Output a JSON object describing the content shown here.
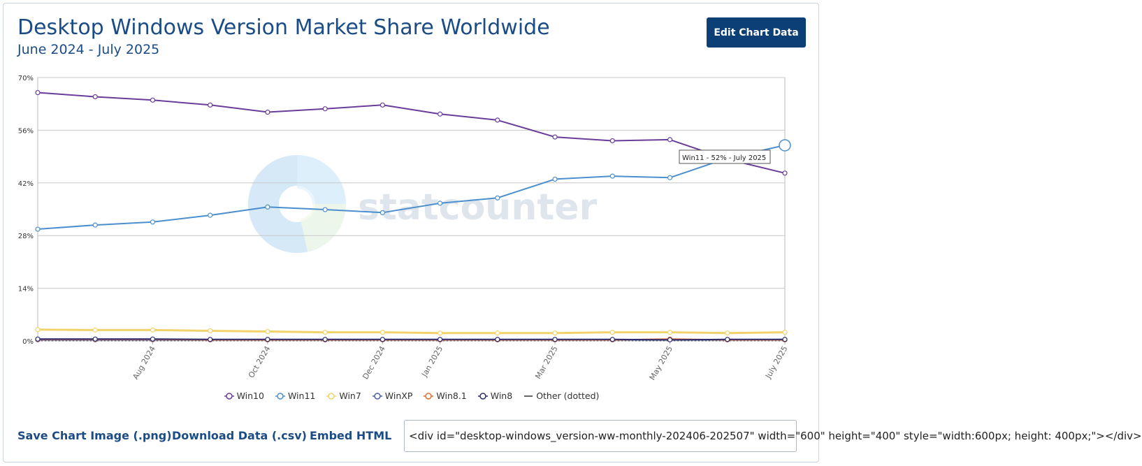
{
  "header": {
    "title": "Desktop Windows Version Market Share Worldwide",
    "subtitle": "June 2024 - July 2025",
    "edit_button": "Edit Chart Data"
  },
  "watermark": "statcounter",
  "tooltip": {
    "text": "Win11 - 52% - July 2025"
  },
  "chart_data": {
    "type": "line",
    "x": [
      "2024-06",
      "2024-07",
      "2024-08",
      "2024-09",
      "2024-10",
      "2024-11",
      "2024-12",
      "2025-01",
      "2025-02",
      "2025-03",
      "2025-04",
      "2025-05",
      "2025-06",
      "2025-07"
    ],
    "x_tick_labels": [
      "",
      "",
      "Aug 2024",
      "",
      "Oct 2024",
      "",
      "Dec 2024",
      "Jan 2025",
      "",
      "Mar 2025",
      "",
      "May 2025",
      "",
      "July 2025"
    ],
    "y_tick_labels": [
      "0%",
      "14%",
      "28%",
      "42%",
      "56%",
      "70%"
    ],
    "ylim": [
      0,
      70
    ],
    "grid": true,
    "series": [
      {
        "name": "Win10",
        "color": "#6a3d9a",
        "values": [
          66.0,
          64.9,
          64.0,
          62.7,
          60.8,
          61.7,
          62.7,
          60.3,
          58.7,
          54.2,
          53.2,
          53.5,
          48.3,
          44.6
        ]
      },
      {
        "name": "Win11",
        "color": "#4c8fcf",
        "values": [
          29.7,
          30.8,
          31.6,
          33.4,
          35.6,
          34.9,
          34.1,
          36.6,
          38.0,
          43.0,
          43.8,
          43.4,
          48.6,
          52.0
        ]
      },
      {
        "name": "Win7",
        "color": "#f2d36b",
        "values": [
          3.0,
          2.9,
          2.9,
          2.7,
          2.5,
          2.3,
          2.3,
          2.1,
          2.1,
          2.1,
          2.3,
          2.3,
          2.1,
          2.3
        ]
      },
      {
        "name": "WinXP",
        "color": "#4a5fa8",
        "values": [
          0.3,
          0.3,
          0.3,
          0.3,
          0.3,
          0.3,
          0.3,
          0.3,
          0.3,
          0.3,
          0.3,
          0.3,
          0.3,
          0.3
        ]
      },
      {
        "name": "Win8.1",
        "color": "#e86d2e",
        "values": [
          0.4,
          0.4,
          0.4,
          0.3,
          0.3,
          0.3,
          0.3,
          0.3,
          0.3,
          0.3,
          0.3,
          0.5,
          0.3,
          0.3
        ]
      },
      {
        "name": "Win8",
        "color": "#2c2d6e",
        "values": [
          0.5,
          0.5,
          0.5,
          0.4,
          0.4,
          0.4,
          0.4,
          0.4,
          0.4,
          0.4,
          0.4,
          0.3,
          0.4,
          0.4
        ]
      },
      {
        "name": "Other (dotted)",
        "color": "#666666",
        "values": [
          0.1,
          0.1,
          0.1,
          0.1,
          0.1,
          0.1,
          0.1,
          0.1,
          0.1,
          0.1,
          0.1,
          0.1,
          0.1,
          0.1
        ]
      }
    ]
  },
  "legend": {
    "items": [
      {
        "label": "Win10",
        "color": "#6a3d9a",
        "marker": "circle"
      },
      {
        "label": "Win11",
        "color": "#4c8fcf",
        "marker": "circle"
      },
      {
        "label": "Win7",
        "color": "#f2d36b",
        "marker": "circle"
      },
      {
        "label": "WinXP",
        "color": "#4a5fa8",
        "marker": "circle"
      },
      {
        "label": "Win8.1",
        "color": "#e86d2e",
        "marker": "circle"
      },
      {
        "label": "Win8",
        "color": "#2c2d6e",
        "marker": "circle"
      },
      {
        "label": "Other (dotted)",
        "color": "#666666",
        "marker": "line"
      }
    ]
  },
  "footer": {
    "save_image": "Save Chart Image (.png)",
    "download_csv": "Download Data (.csv)",
    "embed_html": "Embed HTML",
    "embed_code": "<div id=\"desktop-windows_version-ww-monthly-202406-202507\" width=\"600\" height=\"400\" style=\"width:600px; height: 400px;\"></div>"
  }
}
